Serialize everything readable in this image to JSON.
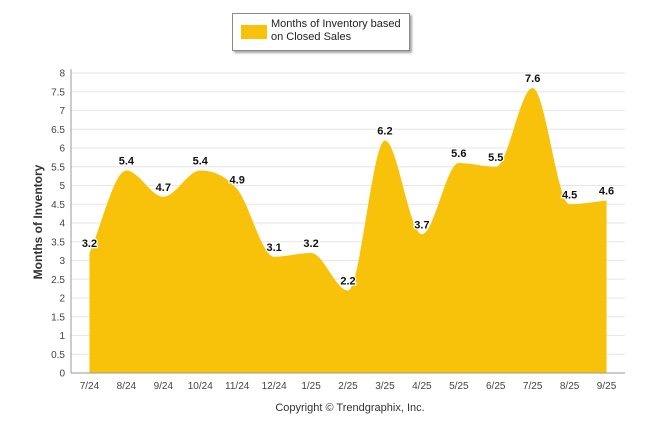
{
  "chart_data": {
    "type": "area",
    "title": "",
    "xlabel": "",
    "ylabel": "Months of Inventory",
    "ylim": [
      0,
      8
    ],
    "yticks": [
      "0",
      "0.5",
      "1",
      "1.5",
      "2",
      "2.5",
      "3",
      "3.5",
      "4",
      "4.5",
      "5",
      "5.5",
      "6",
      "6.5",
      "7",
      "7.5",
      "8"
    ],
    "categories": [
      "7/24",
      "8/24",
      "9/24",
      "10/24",
      "11/24",
      "12/24",
      "1/25",
      "2/25",
      "3/25",
      "4/25",
      "5/25",
      "6/25",
      "7/25",
      "8/25",
      "9/25"
    ],
    "series": [
      {
        "name": "Months of Inventory based on Closed Sales",
        "values": [
          3.2,
          5.4,
          4.7,
          5.4,
          4.9,
          3.1,
          3.2,
          2.2,
          6.2,
          3.7,
          5.6,
          5.5,
          7.6,
          4.5,
          4.6
        ],
        "labels": [
          "3.2",
          "5.4",
          "4.7",
          "5.4",
          "4.9",
          "3.1",
          "3.2",
          "2.2",
          "6.2",
          "3.7",
          "5.6",
          "5.5",
          "7.6",
          "4.5",
          "4.6"
        ]
      }
    ],
    "legend": {
      "position": "top",
      "label": "Months of Inventory based on Closed Sales"
    },
    "grid": true,
    "colors": {
      "fill": "#F9C20A",
      "grid": "#e6e6e6",
      "axis": "#999999"
    }
  },
  "footer": {
    "copyright": "Copyright © Trendgraphix, Inc."
  }
}
